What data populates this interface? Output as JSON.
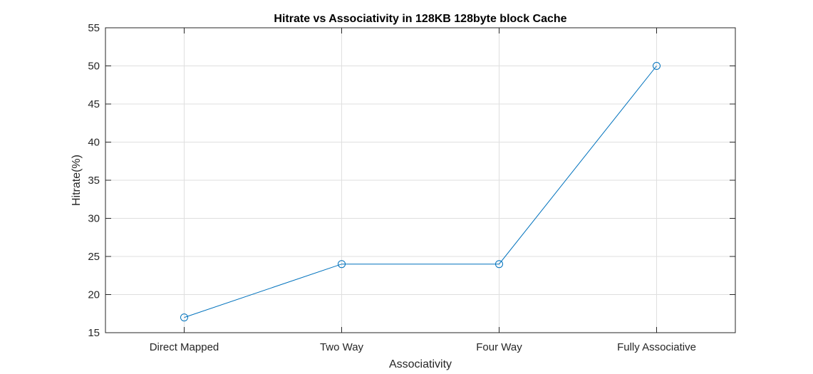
{
  "chart_data": {
    "type": "line",
    "title": "Hitrate vs Associativity in 128KB 128byte block Cache",
    "xlabel": "Associativity",
    "ylabel": "Hitrate(%)",
    "categories": [
      "Direct Mapped",
      "Two Way",
      "Four Way",
      "Fully Associative"
    ],
    "series": [
      {
        "values": [
          17,
          24,
          24,
          50
        ],
        "color": "#0072BD",
        "marker": "circle"
      }
    ],
    "ylim": [
      15,
      55
    ],
    "yticks": [
      15,
      20,
      25,
      30,
      35,
      40,
      45,
      50,
      55
    ],
    "grid": true,
    "legend": "none"
  }
}
